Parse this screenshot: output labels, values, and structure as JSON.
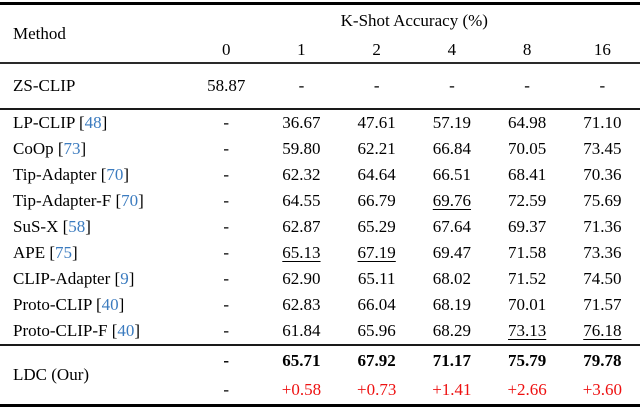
{
  "table": {
    "header": {
      "method_label": "Method",
      "group_label": "K-Shot Accuracy (%)",
      "shot_columns": [
        "0",
        "1",
        "2",
        "4",
        "8",
        "16"
      ]
    },
    "colors": {
      "citation_blue": "#3b7bbf",
      "delta_red": "#ee1111",
      "text_black": "#000000"
    },
    "zero_shot_row": {
      "method": "ZS-CLIP",
      "values": [
        "58.87",
        "-",
        "-",
        "-",
        "-",
        "-"
      ]
    },
    "baseline_rows": [
      {
        "method": "LP-CLIP",
        "cite": "48",
        "values": [
          "-",
          "36.67",
          "47.61",
          "57.19",
          "64.98",
          "71.10"
        ],
        "underline": []
      },
      {
        "method": "CoOp",
        "cite": "73",
        "values": [
          "-",
          "59.80",
          "62.21",
          "66.84",
          "70.05",
          "73.45"
        ],
        "underline": []
      },
      {
        "method": "Tip-Adapter",
        "cite": "70",
        "values": [
          "-",
          "62.32",
          "64.64",
          "66.51",
          "68.41",
          "70.36"
        ],
        "underline": []
      },
      {
        "method": "Tip-Adapter-F",
        "cite": "70",
        "values": [
          "-",
          "64.55",
          "66.79",
          "69.76",
          "72.59",
          "75.69"
        ],
        "underline": [
          3
        ]
      },
      {
        "method": "SuS-X",
        "cite": "58",
        "values": [
          "-",
          "62.87",
          "65.29",
          "67.64",
          "69.37",
          "71.36"
        ],
        "underline": []
      },
      {
        "method": "APE",
        "cite": "75",
        "values": [
          "-",
          "65.13",
          "67.19",
          "69.47",
          "71.58",
          "73.36"
        ],
        "underline": [
          1,
          2
        ]
      },
      {
        "method": "CLIP-Adapter",
        "cite": "9",
        "values": [
          "-",
          "62.90",
          "65.11",
          "68.02",
          "71.52",
          "74.50"
        ],
        "underline": []
      },
      {
        "method": "Proto-CLIP",
        "cite": "40",
        "values": [
          "-",
          "62.83",
          "66.04",
          "68.19",
          "70.01",
          "71.57"
        ],
        "underline": []
      },
      {
        "method": "Proto-CLIP-F",
        "cite": "40",
        "values": [
          "-",
          "61.84",
          "65.96",
          "68.29",
          "73.13",
          "76.18"
        ],
        "underline": [
          4,
          5
        ]
      }
    ],
    "ours": {
      "method": "LDC (Our)",
      "accuracy": [
        "-",
        "65.71",
        "67.92",
        "71.17",
        "75.79",
        "79.78"
      ],
      "delta": [
        "-",
        "+0.58",
        "+0.73",
        "+1.41",
        "+2.66",
        "+3.60"
      ]
    }
  }
}
